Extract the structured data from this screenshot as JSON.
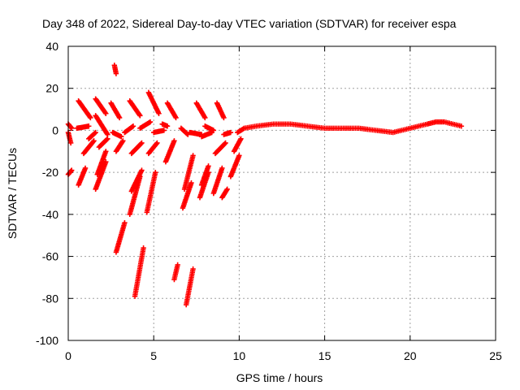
{
  "chart_data": {
    "type": "scatter",
    "title": "Day 348 of 2022, Sidereal Day-to-day VTEC variation (SDTVAR) for receiver espa",
    "xlabel": "GPS time / hours",
    "ylabel": "SDTVAR / TECUs",
    "xlim": [
      0,
      25
    ],
    "ylim": [
      -100,
      40
    ],
    "xticks": [
      "0",
      "5",
      "10",
      "15",
      "20",
      "25"
    ],
    "yticks": [
      "40",
      "20",
      "0",
      "-20",
      "-40",
      "-60",
      "-80",
      "-100"
    ],
    "grid": true,
    "marker": "+",
    "color": "#ff0000",
    "arcs": [
      {
        "x": [
          0.0,
          0.15
        ],
        "y": [
          -1,
          -6
        ]
      },
      {
        "x": [
          0.0,
          0.2
        ],
        "y": [
          -21,
          -19
        ]
      },
      {
        "x": [
          0.0,
          0.2
        ],
        "y": [
          3,
          1
        ]
      },
      {
        "x": [
          0.6,
          1.0
        ],
        "y": [
          -26,
          -18
        ]
      },
      {
        "x": [
          0.5,
          1.2
        ],
        "y": [
          1,
          2
        ]
      },
      {
        "x": [
          0.6,
          1.3
        ],
        "y": [
          14,
          6
        ]
      },
      {
        "x": [
          0.9,
          1.5
        ],
        "y": [
          -11,
          -5
        ]
      },
      {
        "x": [
          1.2,
          1.6
        ],
        "y": [
          -4,
          -1
        ]
      },
      {
        "x": [
          1.6,
          2.2
        ],
        "y": [
          -28,
          -15
        ]
      },
      {
        "x": [
          1.7,
          2.2
        ],
        "y": [
          -21,
          -10
        ]
      },
      {
        "x": [
          1.6,
          2.2
        ],
        "y": [
          15,
          8
        ]
      },
      {
        "x": [
          1.6,
          2.3
        ],
        "y": [
          7,
          -2
        ]
      },
      {
        "x": [
          1.8,
          2.3
        ],
        "y": [
          -8,
          -4
        ]
      },
      {
        "x": [
          2.5,
          3.0
        ],
        "y": [
          13,
          6
        ]
      },
      {
        "x": [
          2.6,
          3.1
        ],
        "y": [
          -1,
          -3
        ]
      },
      {
        "x": [
          2.7,
          2.8
        ],
        "y": [
          31,
          27
        ]
      },
      {
        "x": [
          2.8,
          3.2
        ],
        "y": [
          -10,
          -5
        ]
      },
      {
        "x": [
          2.8,
          3.3
        ],
        "y": [
          -58,
          -44
        ]
      },
      {
        "x": [
          3.3,
          3.8
        ],
        "y": [
          -1,
          2
        ]
      },
      {
        "x": [
          3.6,
          4.2
        ],
        "y": [
          -40,
          -22
        ]
      },
      {
        "x": [
          3.7,
          4.3
        ],
        "y": [
          -29,
          -19
        ]
      },
      {
        "x": [
          3.7,
          4.3
        ],
        "y": [
          -11,
          -6
        ]
      },
      {
        "x": [
          3.6,
          4.2
        ],
        "y": [
          14,
          7
        ]
      },
      {
        "x": [
          3.9,
          4.4
        ],
        "y": [
          -79,
          -56
        ]
      },
      {
        "x": [
          4.2,
          4.8
        ],
        "y": [
          1,
          4
        ]
      },
      {
        "x": [
          4.6,
          5.1
        ],
        "y": [
          -39,
          -20
        ]
      },
      {
        "x": [
          4.7,
          5.2
        ],
        "y": [
          -11,
          -6
        ]
      },
      {
        "x": [
          4.7,
          5.3
        ],
        "y": [
          18,
          8
        ]
      },
      {
        "x": [
          5.0,
          5.6
        ],
        "y": [
          -1,
          0
        ]
      },
      {
        "x": [
          5.5,
          5.8
        ],
        "y": [
          3,
          2
        ]
      },
      {
        "x": [
          5.7,
          6.2
        ],
        "y": [
          -15,
          -5
        ]
      },
      {
        "x": [
          5.8,
          6.3
        ],
        "y": [
          13,
          6
        ]
      },
      {
        "x": [
          6.2,
          6.4
        ],
        "y": [
          -71,
          -64
        ]
      },
      {
        "x": [
          6.6,
          7.0
        ],
        "y": [
          1,
          -2
        ]
      },
      {
        "x": [
          6.7,
          7.2
        ],
        "y": [
          -37,
          -25
        ]
      },
      {
        "x": [
          6.8,
          7.3
        ],
        "y": [
          -28,
          -12
        ]
      },
      {
        "x": [
          6.9,
          7.3
        ],
        "y": [
          -83,
          -66
        ]
      },
      {
        "x": [
          7.1,
          7.8
        ],
        "y": [
          -1,
          -2
        ]
      },
      {
        "x": [
          7.5,
          8.0
        ],
        "y": [
          13,
          6
        ]
      },
      {
        "x": [
          7.7,
          8.2
        ],
        "y": [
          -32,
          -20
        ]
      },
      {
        "x": [
          7.8,
          8.2
        ],
        "y": [
          -26,
          -17
        ]
      },
      {
        "x": [
          7.8,
          8.4
        ],
        "y": [
          -3,
          -1
        ]
      },
      {
        "x": [
          8.0,
          8.5
        ],
        "y": [
          2,
          0
        ]
      },
      {
        "x": [
          8.5,
          9.0
        ],
        "y": [
          -30,
          -18
        ]
      },
      {
        "x": [
          8.6,
          9.2
        ],
        "y": [
          -11,
          -6
        ]
      },
      {
        "x": [
          8.7,
          9.1
        ],
        "y": [
          13,
          6
        ]
      },
      {
        "x": [
          9.1,
          9.5
        ],
        "y": [
          -2,
          -1
        ]
      },
      {
        "x": [
          9.0,
          9.3
        ],
        "y": [
          -32,
          -28
        ]
      },
      {
        "x": [
          9.5,
          10.0
        ],
        "y": [
          -22,
          -12
        ]
      },
      {
        "x": [
          9.7,
          10.1
        ],
        "y": [
          -10,
          -4
        ]
      },
      {
        "x": [
          9.9,
          10.3
        ],
        "y": [
          -1,
          1
        ]
      }
    ],
    "trend": {
      "x": [
        10.3,
        11,
        12,
        13,
        14,
        15,
        16,
        17,
        18,
        19,
        20,
        21,
        21.5,
        22,
        23
      ],
      "y": [
        1,
        2,
        3,
        3,
        2,
        1,
        1,
        1,
        0,
        -1,
        1,
        3,
        4,
        4,
        2
      ]
    }
  }
}
